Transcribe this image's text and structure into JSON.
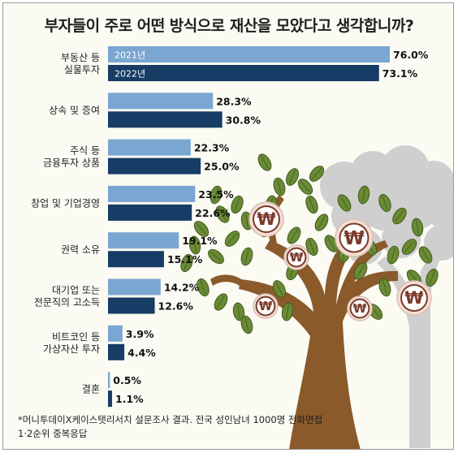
{
  "chart_data": {
    "type": "bar",
    "orientation": "horizontal",
    "title": "부자들이 주로 어떤 방식으로 재산을 모았다고 생각합니까?",
    "categories": [
      [
        "부동산 등",
        "실물투자"
      ],
      [
        "상속 및 증여"
      ],
      [
        "주식 등",
        "금융투자 상품"
      ],
      [
        "창업 및 기업경영"
      ],
      [
        "권력 소유"
      ],
      [
        "대기업 또는",
        "전문직의 고소득"
      ],
      [
        "비트코인 등",
        "가상자산 투자"
      ],
      [
        "결혼"
      ]
    ],
    "series": [
      {
        "name": "2021년",
        "values": [
          76.0,
          28.3,
          22.3,
          23.5,
          19.1,
          14.2,
          3.9,
          0.5
        ],
        "color": "#7aa6d2"
      },
      {
        "name": "2022년",
        "values": [
          73.1,
          30.8,
          25.0,
          22.6,
          15.1,
          12.6,
          4.4,
          1.1
        ],
        "color": "#173c66"
      }
    ],
    "xlim": [
      0,
      76
    ],
    "legend": "inside-first-bars",
    "value_suffix": "%",
    "grid": false
  },
  "footnote": [
    "*머니투데이X케이스탯리서치 설문조사 결과. 전국 성인남녀 1000명 전화면접",
    "1·2순위 중복응답"
  ],
  "illustration": {
    "name": "money-tree",
    "coin_symbol": "₩",
    "colors": {
      "trunk": "#8a5a2a",
      "leaf": "#6a8a34",
      "leaf_edge": "#3e5a1c",
      "coin": "#f4ddd3",
      "coin_ring": "#7a3a2a",
      "shadow_tree": "#cfcfcf"
    }
  }
}
